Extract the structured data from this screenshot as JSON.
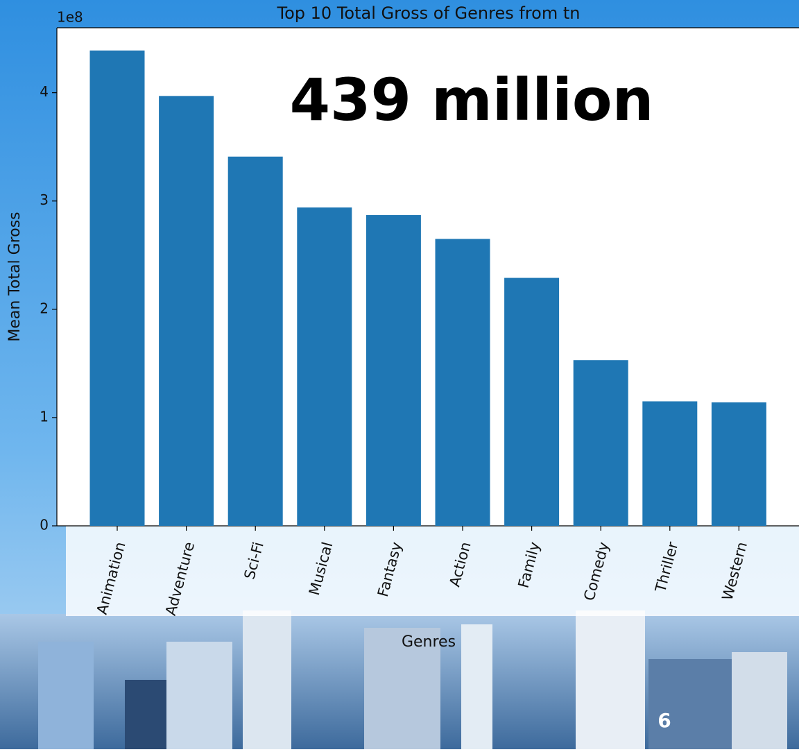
{
  "chart_data": {
    "type": "bar",
    "title": "Top 10 Total Gross of Genres from tn",
    "xlabel": "Genres",
    "ylabel": "Mean Total Gross",
    "y_offset_label": "1e8",
    "annotation": "439 million",
    "categories": [
      "Animation",
      "Adventure",
      "Sci-Fi",
      "Musical",
      "Fantasy",
      "Action",
      "Family",
      "Comedy",
      "Thriller",
      "Western"
    ],
    "values": [
      4.39,
      3.97,
      3.41,
      2.94,
      2.87,
      2.65,
      2.29,
      1.53,
      1.15,
      1.14
    ],
    "color": "#1f77b4",
    "ylim": [
      0,
      4.6
    ],
    "yticks": [
      0,
      1,
      2,
      3,
      4
    ],
    "grid": false
  },
  "slide_number": "6"
}
